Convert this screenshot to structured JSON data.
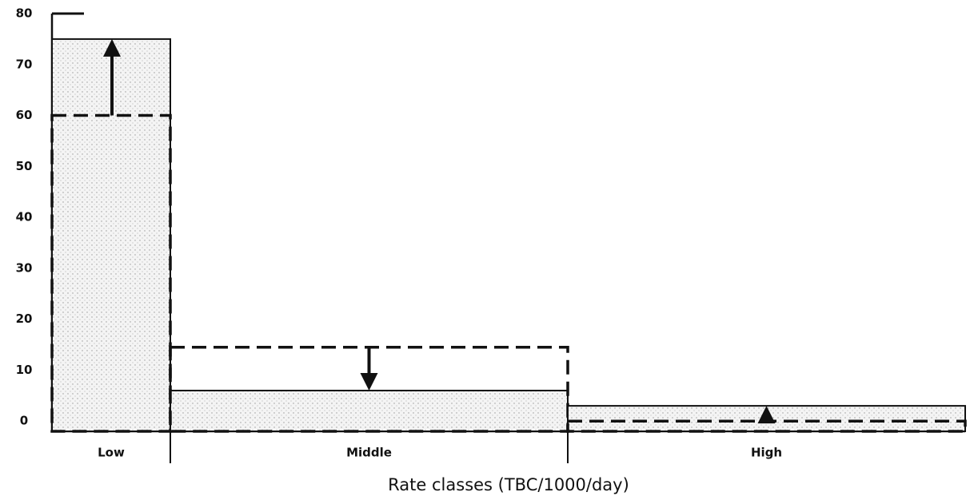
{
  "chart_data": {
    "type": "bar",
    "x_label": "Rate classes (TBC/1000/day)",
    "categories": [
      "Low",
      "Middle",
      "High"
    ],
    "series": [
      {
        "values": [
          75,
          6,
          3
        ],
        "style": "solid",
        "color": "#111111"
      },
      {
        "values": [
          60,
          14.5,
          0
        ],
        "style": "dashed",
        "color": "#111111"
      }
    ],
    "ylim": [
      -2,
      80
    ],
    "yticks": [
      0,
      10,
      20,
      30,
      40,
      50,
      60,
      70,
      80
    ],
    "fill": "#e6e6e6"
  }
}
